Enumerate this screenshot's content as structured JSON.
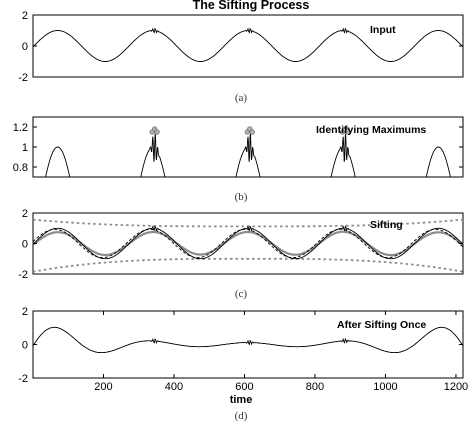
{
  "figure": {
    "title": "The Sifting Process",
    "xlabel": "time"
  },
  "chart_data": [
    {
      "id": "input",
      "type": "line",
      "panel_label": "Input",
      "caption": "(a)",
      "xlim": [
        0,
        1220
      ],
      "ylim": [
        -2,
        2
      ],
      "yticks": [
        -2,
        0,
        2
      ],
      "series": [
        {
          "name": "",
          "x": [
            0,
            70,
            200,
            340,
            355,
            480,
            610,
            625,
            750,
            880,
            895,
            1020,
            1150,
            1220
          ],
          "y": [
            0,
            1,
            -1,
            1,
            1.1,
            -1,
            1,
            1.1,
            -1,
            1,
            1.1,
            -1,
            1,
            0
          ]
        }
      ]
    },
    {
      "id": "maxima",
      "type": "line",
      "panel_label": "Identifying Maximums",
      "caption": "(b)",
      "xlim": [
        0,
        1220
      ],
      "ylim": [
        0.7,
        1.3
      ],
      "yticks": [
        0.8,
        1,
        1.2
      ],
      "series": [
        {
          "name": "",
          "x": [
            70,
            330,
            338,
            345,
            352,
            360,
            600,
            608,
            615,
            622,
            630,
            870,
            878,
            885,
            892,
            900,
            1150
          ],
          "y": [
            1.0,
            1.02,
            1.15,
            1.18,
            1.15,
            1.02,
            1.02,
            1.15,
            1.18,
            1.15,
            1.02,
            1.02,
            1.15,
            1.18,
            1.15,
            1.02,
            1.0
          ]
        }
      ]
    },
    {
      "id": "sifting",
      "type": "line",
      "panel_label": "Sifting",
      "caption": "(c)",
      "xlim": [
        0,
        1220
      ],
      "ylim": [
        -2,
        2
      ],
      "yticks": [
        -2,
        0,
        2
      ],
      "series": [
        {
          "name": "",
          "x": [
            0,
            345,
            615,
            885,
            1220
          ],
          "y": [
            1.5,
            1.15,
            1.15,
            1.15,
            1.5
          ]
        },
        {
          "name": "",
          "x": [
            0,
            200,
            480,
            750,
            1020,
            1220
          ],
          "y": [
            -1.8,
            -1.05,
            -1.0,
            -1.0,
            -1.05,
            -1.8
          ]
        }
      ]
    },
    {
      "id": "after",
      "type": "line",
      "panel_label": "After Sifting Once",
      "caption": "(d)",
      "xlim": [
        0,
        1220
      ],
      "ylim": [
        -2,
        2
      ],
      "yticks": [
        -2,
        0,
        2
      ],
      "xticks": [
        200,
        400,
        600,
        800,
        1000,
        1200
      ],
      "series": [
        {
          "name": "",
          "x": [
            0,
            70,
            200,
            345,
            480,
            615,
            750,
            885,
            1000,
            1150,
            1220
          ],
          "y": [
            0.3,
            1.4,
            0.05,
            0,
            -0.3,
            0,
            -0.3,
            0,
            -0.6,
            1.4,
            0.3
          ]
        }
      ]
    }
  ]
}
